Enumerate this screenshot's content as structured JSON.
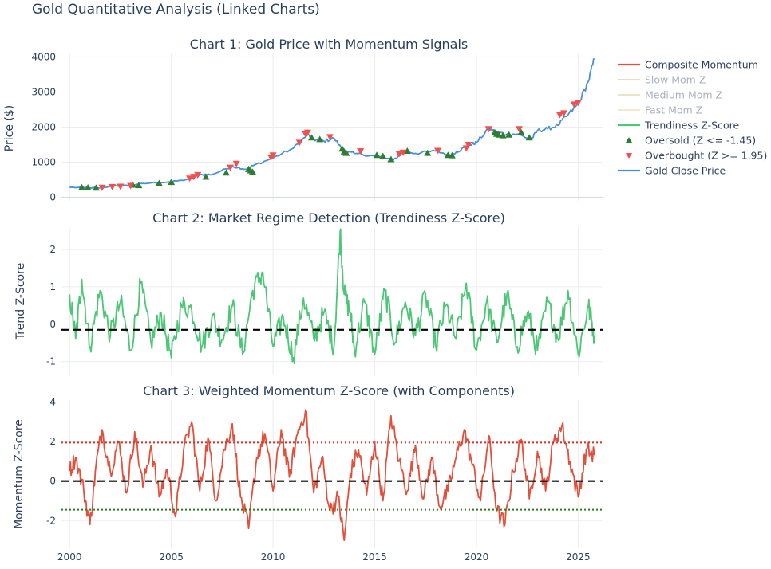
{
  "figure": {
    "title": "Gold Quantitative Analysis (Linked Charts)"
  },
  "colors": {
    "composite": "#e2503c",
    "slow": "#c9b98c",
    "medium": "#d8c68a",
    "fast": "#e6d49a",
    "trendiness": "#4cc776",
    "oversold": "#2e7d32",
    "overbought": "#f25050",
    "gold_close": "#4a90d9",
    "zero_line": "#000000",
    "upper_threshold": "#d9342b",
    "lower_threshold": "#2f7d1f"
  },
  "legend": {
    "items": [
      {
        "label": "Composite Momentum",
        "kind": "line",
        "color": "#e2503c",
        "dim": false
      },
      {
        "label": "Slow Mom Z",
        "kind": "line",
        "color": "#c9b98c",
        "dim": true
      },
      {
        "label": "Medium Mom Z",
        "kind": "line",
        "color": "#d8c68a",
        "dim": true
      },
      {
        "label": "Fast Mom Z",
        "kind": "line",
        "color": "#e6d49a",
        "dim": true
      },
      {
        "label": "Trendiness Z-Score",
        "kind": "line",
        "color": "#4cc776",
        "dim": false
      },
      {
        "label": "Oversold (Z <= -1.45)",
        "kind": "triangle-up",
        "color": "#2e7d32",
        "dim": false
      },
      {
        "label": "Overbought (Z >= 1.95)",
        "kind": "triangle-down",
        "color": "#f25050",
        "dim": false
      },
      {
        "label": "Gold Close Price",
        "kind": "line",
        "color": "#4a90d9",
        "dim": false
      }
    ]
  },
  "chart_data": [
    {
      "type": "line",
      "title": "Chart 1: Gold Price with Momentum Signals",
      "ylabel": "Price ($)",
      "xlim": [
        1999.6,
        2026.2
      ],
      "ylim": [
        -100,
        4100
      ],
      "yticks": [
        0,
        1000,
        2000,
        3000,
        4000
      ],
      "grid": true,
      "series": [
        {
          "name": "Gold Close Price",
          "x": [
            2000,
            2001,
            2001.5,
            2002,
            2003,
            2004,
            2005,
            2006,
            2006.4,
            2007,
            2008,
            2008.7,
            2009,
            2010,
            2011,
            2011.7,
            2012,
            2012.5,
            2013,
            2013.5,
            2014,
            2015,
            2015.9,
            2016.5,
            2017,
            2018,
            2018.7,
            2019,
            2019.7,
            2020,
            2020.6,
            2021,
            2021.5,
            2022,
            2022.7,
            2023,
            2023.5,
            2024,
            2024.5,
            2025,
            2025.5,
            2025.8
          ],
          "y": [
            285,
            270,
            268,
            310,
            350,
            410,
            440,
            530,
            650,
            650,
            880,
            800,
            900,
            1120,
            1400,
            1780,
            1650,
            1600,
            1680,
            1300,
            1250,
            1180,
            1060,
            1320,
            1250,
            1320,
            1200,
            1290,
            1500,
            1560,
            1950,
            1850,
            1800,
            1800,
            1650,
            1900,
            1950,
            2050,
            2350,
            2650,
            3300,
            3950
          ]
        }
      ],
      "markers": {
        "oversold": {
          "name": "Oversold (Z <= -1.45)",
          "x": [
            2000.6,
            2000.9,
            2001.3,
            2003.1,
            2003.4,
            2004.4,
            2005.0,
            2006.7,
            2007.7,
            2008.8,
            2008.9,
            2009.0,
            2011.9,
            2012.3,
            2013.4,
            2013.5,
            2013.6,
            2015.1,
            2015.4,
            2015.8,
            2016.6,
            2017.6,
            2018.6,
            2018.8,
            2020.9,
            2021.0,
            2021.1,
            2021.3,
            2021.6,
            2022.2,
            2022.6
          ],
          "y": [
            280,
            275,
            270,
            355,
            340,
            400,
            430,
            580,
            700,
            800,
            760,
            720,
            1700,
            1650,
            1380,
            1300,
            1260,
            1200,
            1170,
            1080,
            1320,
            1260,
            1200,
            1190,
            1850,
            1800,
            1780,
            1760,
            1780,
            1850,
            1700
          ]
        },
        "overbought": {
          "name": "Overbought (Z >= 1.95)",
          "x": [
            2001.6,
            2002.1,
            2002.5,
            2003.0,
            2005.9,
            2006.1,
            2006.3,
            2007.9,
            2008.2,
            2009.9,
            2010.0,
            2011.3,
            2011.6,
            2011.7,
            2012.8,
            2014.3,
            2016.2,
            2016.4,
            2018.1,
            2019.5,
            2019.6,
            2020.6,
            2022.1,
            2024.1,
            2024.3,
            2024.8,
            2025.0
          ],
          "y": [
            280,
            300,
            310,
            330,
            540,
            590,
            640,
            850,
            960,
            1140,
            1200,
            1560,
            1800,
            1850,
            1720,
            1320,
            1240,
            1280,
            1330,
            1400,
            1500,
            1950,
            1950,
            2350,
            2400,
            2650,
            2700
          ]
        }
      }
    },
    {
      "type": "line",
      "title": "Chart 2: Market Regime Detection (Trendiness Z-Score)",
      "ylabel": "Trend Z-Score",
      "xlim": [
        1999.6,
        2026.2
      ],
      "ylim": [
        -1.35,
        2.6
      ],
      "yticks": [
        -1,
        0,
        1,
        2
      ],
      "grid": true,
      "reference_lines": [
        {
          "y": -0.15,
          "style": "dashed",
          "color": "#000000"
        }
      ],
      "series": [
        {
          "name": "Trendiness Z-Score",
          "x": [
            2000,
            2000.3,
            2000.6,
            2001,
            2001.5,
            2002,
            2002.5,
            2003,
            2003.5,
            2004,
            2004.5,
            2005,
            2005.5,
            2006,
            2006.5,
            2007,
            2007.5,
            2008,
            2008.5,
            2009,
            2009.5,
            2010,
            2010.5,
            2011,
            2011.5,
            2012,
            2012.5,
            2013,
            2013.3,
            2013.5,
            2013.8,
            2014,
            2014.5,
            2015,
            2015.5,
            2016,
            2016.5,
            2017,
            2017.5,
            2018,
            2018.5,
            2019,
            2019.5,
            2020,
            2020.5,
            2021,
            2021.5,
            2022,
            2022.5,
            2023,
            2023.5,
            2024,
            2024.5,
            2025,
            2025.5,
            2025.8
          ],
          "y": [
            0.8,
            -0.4,
            1.2,
            -0.6,
            0.9,
            -0.3,
            0.6,
            -0.7,
            1.1,
            -0.5,
            0.3,
            -0.9,
            0.5,
            0.4,
            -0.6,
            0.2,
            -0.4,
            0.5,
            -0.8,
            0.9,
            1.4,
            -0.6,
            0.2,
            -0.9,
            0.7,
            -0.4,
            0.3,
            -0.6,
            2.5,
            0.8,
            0.3,
            -0.7,
            0.6,
            -0.8,
            0.9,
            -0.5,
            0.6,
            -0.3,
            0.8,
            -0.6,
            0.5,
            -0.4,
            1.1,
            -0.7,
            0.6,
            -0.5,
            0.8,
            -0.6,
            0.3,
            -0.7,
            0.6,
            -0.4,
            0.9,
            -0.8,
            0.5,
            -0.3
          ]
        }
      ]
    },
    {
      "type": "line",
      "title": "Chart 3: Weighted Momentum Z-Score (with Components)",
      "ylabel": "Momentum Z-Score",
      "xlabel": "",
      "xlim": [
        1999.6,
        2026.2
      ],
      "ylim": [
        -3.4,
        4.1
      ],
      "yticks": [
        -2,
        0,
        2,
        4
      ],
      "xticks": [
        2000,
        2005,
        2010,
        2015,
        2020,
        2025
      ],
      "grid": true,
      "reference_lines": [
        {
          "y": 1.95,
          "style": "dotted",
          "color": "#d9342b"
        },
        {
          "y": 0,
          "style": "dashed",
          "color": "#000000"
        },
        {
          "y": -1.45,
          "style": "dotted",
          "color": "#2f7d1f"
        }
      ],
      "series": [
        {
          "name": "Composite Momentum",
          "x": [
            2000,
            2000.3,
            2000.7,
            2001,
            2001.3,
            2001.6,
            2002,
            2002.4,
            2002.8,
            2003.2,
            2003.6,
            2004,
            2004.4,
            2004.8,
            2005.2,
            2005.6,
            2006,
            2006.4,
            2006.8,
            2007.2,
            2007.6,
            2008,
            2008.4,
            2008.8,
            2009.2,
            2009.6,
            2010,
            2010.4,
            2010.8,
            2011.2,
            2011.6,
            2012,
            2012.4,
            2012.8,
            2013.2,
            2013.5,
            2013.8,
            2014.2,
            2014.6,
            2015,
            2015.4,
            2015.8,
            2016.2,
            2016.6,
            2017,
            2017.4,
            2017.8,
            2018.2,
            2018.6,
            2019,
            2019.4,
            2019.8,
            2020.2,
            2020.6,
            2021,
            2021.4,
            2021.8,
            2022.2,
            2022.6,
            2023,
            2023.4,
            2023.8,
            2024.2,
            2024.6,
            2025,
            2025.4,
            2025.8
          ],
          "y": [
            0.5,
            1.2,
            -0.5,
            -2.2,
            0.8,
            2.6,
            0.5,
            2.0,
            -0.6,
            2.5,
            -0.3,
            1.8,
            -0.8,
            0.6,
            -1.8,
            1.5,
            3.0,
            -0.5,
            2.2,
            -1.0,
            1.6,
            2.9,
            -0.8,
            -2.4,
            1.2,
            2.4,
            -0.5,
            2.6,
            0.2,
            2.4,
            3.6,
            -0.6,
            1.2,
            -1.5,
            -0.8,
            -3.0,
            0.4,
            1.6,
            -0.7,
            2.0,
            -1.0,
            3.3,
            1.0,
            -0.5,
            1.8,
            -0.9,
            1.2,
            -1.3,
            -0.5,
            1.2,
            2.6,
            0.8,
            -1.0,
            2.3,
            -1.5,
            -2.2,
            0.5,
            2.1,
            -0.9,
            1.5,
            -0.5,
            2.0,
            2.8,
            1.0,
            -0.8,
            1.6,
            1.3
          ]
        }
      ]
    }
  ]
}
